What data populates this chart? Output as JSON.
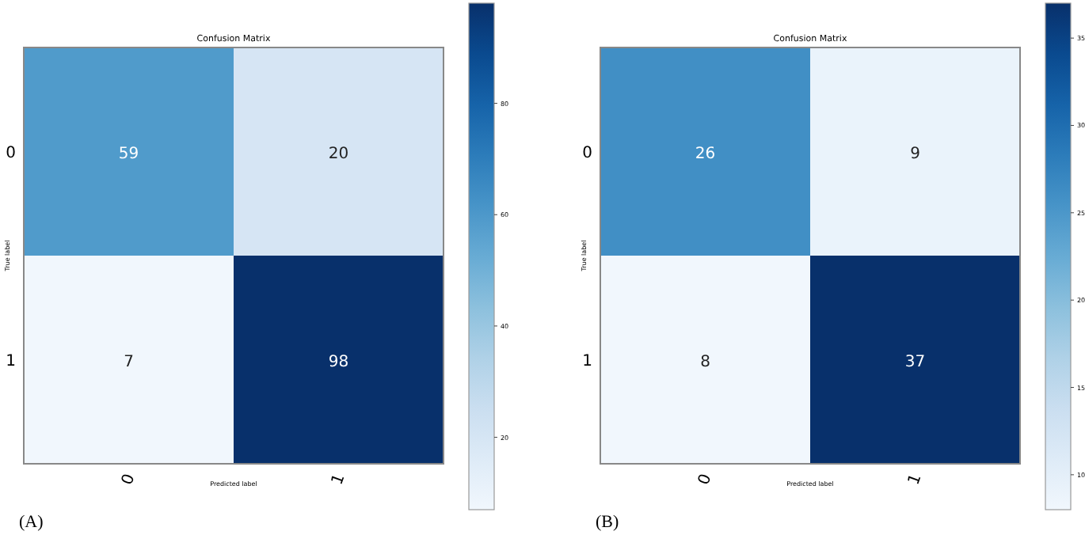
{
  "chart_data": [
    {
      "type": "heatmap",
      "title": "Confusion Matrix",
      "xlabel": "Predicted label",
      "ylabel": "True label",
      "categories": [
        "0",
        "1"
      ],
      "y_categories": [
        "0",
        "1"
      ],
      "cells": [
        [
          59,
          20
        ],
        [
          7,
          98
        ]
      ],
      "data_labels": true,
      "clim": [
        7,
        98
      ],
      "cticks": [
        20,
        40,
        60,
        80
      ],
      "annotations": [
        "(A)"
      ]
    },
    {
      "type": "heatmap",
      "title": "Confusion Matrix",
      "xlabel": "Predicted label",
      "ylabel": "True label",
      "categories": [
        "0",
        "1"
      ],
      "y_categories": [
        "0",
        "1"
      ],
      "cells": [
        [
          26,
          9
        ],
        [
          8,
          37
        ]
      ],
      "data_labels": true,
      "clim": [
        8,
        37
      ],
      "cticks": [
        10,
        15,
        20,
        25,
        30,
        35
      ],
      "annotations": [
        "(B)"
      ]
    }
  ]
}
